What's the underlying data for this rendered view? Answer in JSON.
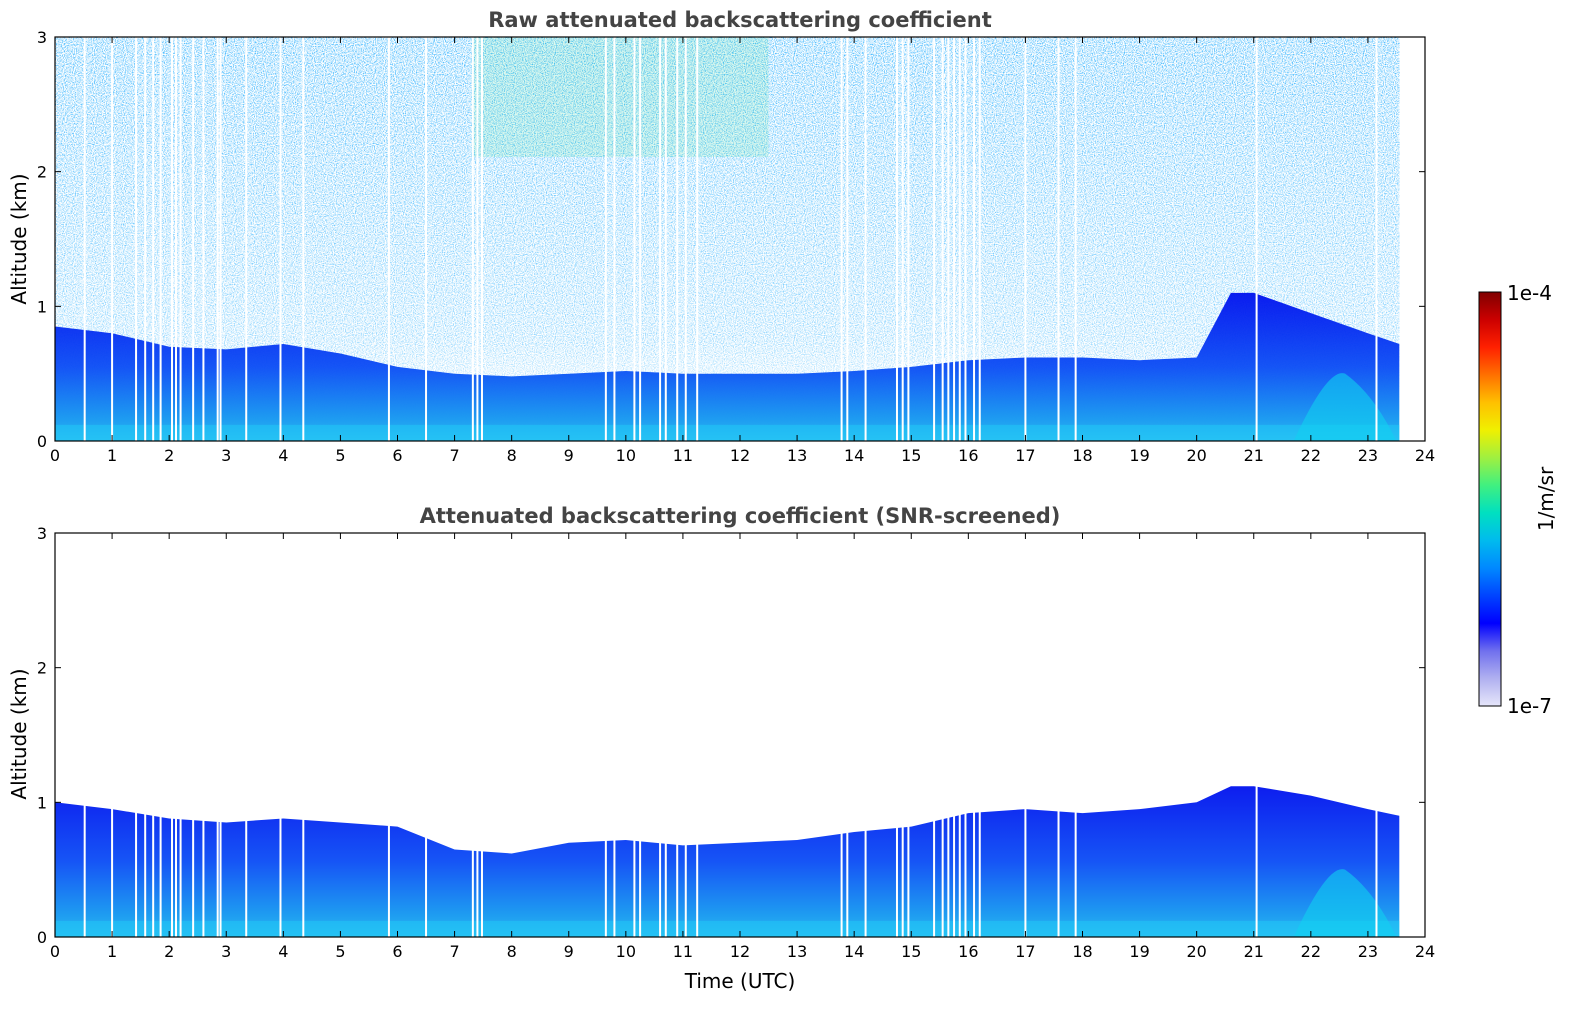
{
  "chart_data": [
    {
      "type": "heatmap",
      "title": "Raw attenuated backscattering coefficient",
      "xlabel": "",
      "ylabel": "Altitude (km)",
      "xlim": [
        0,
        24
      ],
      "ylim": [
        0,
        3
      ],
      "x_ticks": [
        "0",
        "1",
        "2",
        "3",
        "4",
        "5",
        "6",
        "7",
        "8",
        "9",
        "10",
        "11",
        "12",
        "13",
        "14",
        "15",
        "16",
        "17",
        "18",
        "19",
        "20",
        "21",
        "22",
        "23",
        "24"
      ],
      "y_ticks": [
        "0",
        "1",
        "2",
        "3"
      ],
      "data_end_time": 23.55,
      "boundary_layer_top_km": [
        [
          0,
          0.85
        ],
        [
          1,
          0.8
        ],
        [
          2,
          0.7
        ],
        [
          3,
          0.68
        ],
        [
          4,
          0.72
        ],
        [
          5,
          0.65
        ],
        [
          6,
          0.55
        ],
        [
          7,
          0.5
        ],
        [
          8,
          0.48
        ],
        [
          9,
          0.5
        ],
        [
          10,
          0.52
        ],
        [
          11,
          0.5
        ],
        [
          12,
          0.5
        ],
        [
          13,
          0.5
        ],
        [
          14,
          0.52
        ],
        [
          15,
          0.55
        ],
        [
          16,
          0.6
        ],
        [
          17,
          0.62
        ],
        [
          18,
          0.62
        ],
        [
          19,
          0.6
        ],
        [
          20,
          0.62
        ],
        [
          20.6,
          1.1
        ],
        [
          21,
          1.1
        ],
        [
          22,
          0.95
        ],
        [
          23,
          0.8
        ],
        [
          23.55,
          0.72
        ]
      ],
      "data_gaps_hours": [
        0.52,
        1.0,
        1.42,
        1.58,
        1.72,
        1.85,
        2.05,
        2.12,
        2.2,
        2.42,
        2.6,
        2.85,
        2.9,
        3.35,
        3.95,
        4.35,
        5.85,
        6.5,
        7.32,
        7.4,
        7.48,
        9.65,
        9.8,
        10.15,
        10.25,
        10.6,
        10.7,
        10.9,
        11.05,
        11.25,
        13.78,
        13.88,
        14.2,
        14.75,
        14.85,
        14.95,
        15.4,
        15.55,
        15.65,
        15.75,
        15.85,
        15.95,
        16.1,
        16.2,
        17.0,
        17.58,
        17.88,
        21.05,
        23.15
      ]
    },
    {
      "type": "heatmap",
      "title": "Attenuated backscattering coefficient (SNR-screened)",
      "xlabel": "Time (UTC)",
      "ylabel": "Altitude (km)",
      "xlim": [
        0,
        24
      ],
      "ylim": [
        0,
        3
      ],
      "x_ticks": [
        "0",
        "1",
        "2",
        "3",
        "4",
        "5",
        "6",
        "7",
        "8",
        "9",
        "10",
        "11",
        "12",
        "13",
        "14",
        "15",
        "16",
        "17",
        "18",
        "19",
        "20",
        "21",
        "22",
        "23",
        "24"
      ],
      "y_ticks": [
        "0",
        "1",
        "2",
        "3"
      ],
      "data_end_time": 23.55,
      "boundary_layer_top_km": [
        [
          0,
          1.0
        ],
        [
          1,
          0.95
        ],
        [
          2,
          0.88
        ],
        [
          3,
          0.85
        ],
        [
          4,
          0.88
        ],
        [
          5,
          0.85
        ],
        [
          6,
          0.82
        ],
        [
          7,
          0.65
        ],
        [
          8,
          0.62
        ],
        [
          9,
          0.7
        ],
        [
          10,
          0.72
        ],
        [
          11,
          0.68
        ],
        [
          12,
          0.7
        ],
        [
          13,
          0.72
        ],
        [
          14,
          0.78
        ],
        [
          15,
          0.82
        ],
        [
          16,
          0.92
        ],
        [
          17,
          0.95
        ],
        [
          18,
          0.92
        ],
        [
          19,
          0.95
        ],
        [
          20,
          1.0
        ],
        [
          20.6,
          1.12
        ],
        [
          21,
          1.12
        ],
        [
          22,
          1.05
        ],
        [
          23,
          0.95
        ],
        [
          23.55,
          0.9
        ]
      ],
      "data_gaps_hours": [
        0.52,
        1.0,
        1.42,
        1.58,
        1.72,
        1.85,
        2.05,
        2.12,
        2.2,
        2.42,
        2.6,
        2.85,
        2.9,
        3.35,
        3.95,
        4.35,
        5.85,
        6.5,
        7.32,
        7.4,
        7.48,
        9.65,
        9.8,
        10.15,
        10.25,
        10.6,
        10.7,
        10.9,
        11.05,
        11.25,
        13.78,
        13.88,
        14.2,
        14.75,
        14.85,
        14.95,
        15.4,
        15.55,
        15.65,
        15.75,
        15.85,
        15.95,
        16.1,
        16.2,
        17.0,
        17.58,
        17.88,
        21.05,
        23.15
      ]
    }
  ],
  "colorbar": {
    "label": "1/m/sr",
    "min_label": "1e-7",
    "max_label": "1e-4",
    "scale": "log",
    "colors": [
      "#e6e6fa",
      "#b0b0f0",
      "#7070ee",
      "#0000ff",
      "#0044ff",
      "#0088ff",
      "#00bbee",
      "#00e0c0",
      "#40f080",
      "#a0f040",
      "#f0f000",
      "#ffc000",
      "#ff7000",
      "#ff2000",
      "#cc0000",
      "#800000"
    ]
  }
}
